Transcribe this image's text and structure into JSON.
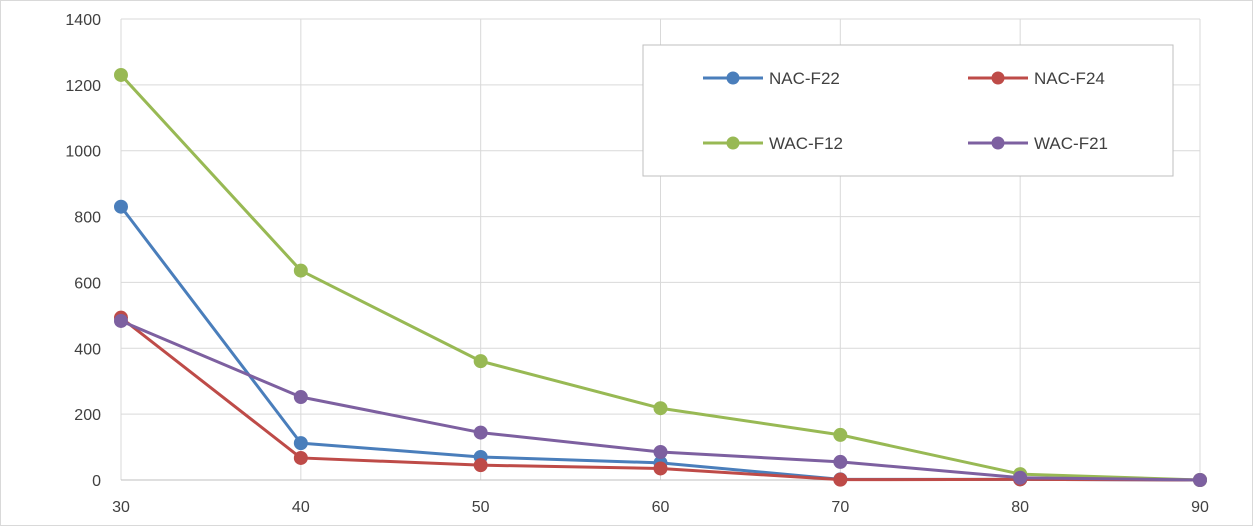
{
  "chart_data": {
    "type": "line",
    "title": "",
    "xlabel": "",
    "ylabel": "",
    "x": [
      30,
      40,
      50,
      60,
      70,
      80,
      90
    ],
    "xlim": [
      30,
      90
    ],
    "ylim": [
      0,
      1400
    ],
    "x_ticks": [
      "30",
      "40",
      "50",
      "60",
      "70",
      "80",
      "90"
    ],
    "y_ticks": [
      "0",
      "200",
      "400",
      "600",
      "800",
      "1000",
      "1200",
      "1400"
    ],
    "grid": true,
    "legend_position": "top-right",
    "series": [
      {
        "name": "NAC-F22",
        "color": "#4a7ebb",
        "values": [
          830,
          112,
          70,
          52,
          2,
          2,
          0
        ]
      },
      {
        "name": "NAC-F24",
        "color": "#be4b48",
        "values": [
          493,
          67,
          45,
          35,
          1,
          2,
          0
        ]
      },
      {
        "name": "WAC-F12",
        "color": "#98b954",
        "values": [
          1230,
          636,
          361,
          218,
          137,
          18,
          0
        ]
      },
      {
        "name": "WAC-F21",
        "color": "#7d60a0",
        "values": [
          483,
          252,
          144,
          85,
          55,
          7,
          0
        ]
      }
    ]
  }
}
